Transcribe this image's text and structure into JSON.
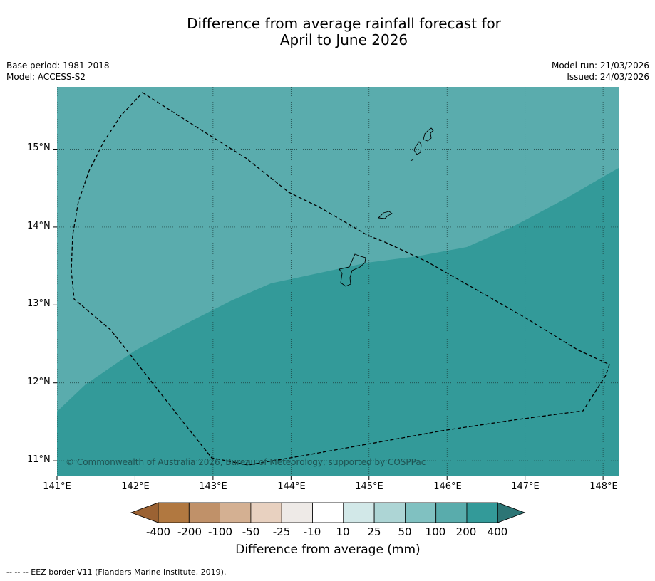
{
  "title": {
    "line1": "Difference from average rainfall forecast for",
    "line2": "April to June 2026"
  },
  "meta": {
    "base_period": "Base period: 1981-2018",
    "model": "Model: ACCESS-S2",
    "model_run": "Model run: 21/03/2026",
    "issued": "Issued: 24/03/2026"
  },
  "map": {
    "lat_labels": [
      "15°N",
      "14°N",
      "13°N",
      "12°N",
      "11°N"
    ],
    "lon_labels": [
      "141°E",
      "142°E",
      "143°E",
      "144°E",
      "145°E",
      "146°E",
      "147°E",
      "148°E"
    ],
    "extent": {
      "lon": [
        141.0,
        148.2
      ],
      "lat": [
        10.8,
        15.8
      ]
    },
    "colors": {
      "light_zone": "#5aacad",
      "dark_zone": "#339a99",
      "gridline": "#1b3b3b",
      "eez": "#000000",
      "land_outline": "#000000"
    },
    "copyright": "© Commonwealth of Australia 2026, Bureau of Meteorology, supported by COSPPac"
  },
  "colorbar": {
    "title": "Difference from average (mm)",
    "labels": [
      "-400",
      "-200",
      "-100",
      "-50",
      "-25",
      "-10",
      "10",
      "25",
      "50",
      "100",
      "200",
      "400"
    ],
    "colors": [
      "#9b6233",
      "#b17840",
      "#c09169",
      "#d4b092",
      "#e8d1c0",
      "#eeeae7",
      "#ffffff",
      "#d2e8e8",
      "#add5d5",
      "#80c1c1",
      "#59acac",
      "#339a99",
      "#2c7575"
    ]
  },
  "footnote": "-- -- -- EEZ border V11 (Flanders Marine Institute, 2019)."
}
